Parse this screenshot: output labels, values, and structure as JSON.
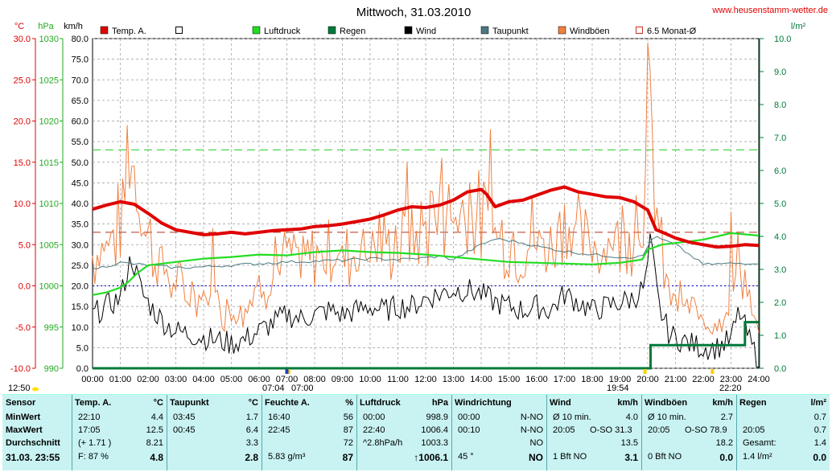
{
  "title": "Mittwoch, 31.03.2010",
  "site": "www.heusenstamm-wetter.de",
  "units": {
    "temp": "°C",
    "press": "hPa",
    "wind": "km/h",
    "rain": "l/m²"
  },
  "legend": [
    {
      "name": "Temp. A.",
      "color": "#e00000",
      "kind": "fill"
    },
    {
      "name": "",
      "color": "#000000",
      "kind": "box"
    },
    {
      "name": "Luftdruck",
      "color": "#22dd22",
      "kind": "fill"
    },
    {
      "name": "Regen",
      "color": "#007a3a",
      "kind": "fill"
    },
    {
      "name": "Wind",
      "color": "#000000",
      "kind": "fill"
    },
    {
      "name": "Taupunkt",
      "color": "#4a7a80",
      "kind": "fill"
    },
    {
      "name": "Windböen",
      "color": "#f08040",
      "kind": "fill"
    },
    {
      "name": "6.5 Monat-Ø",
      "color": "#d03020",
      "kind": "box"
    }
  ],
  "chart_data": {
    "type": "line",
    "x_range": [
      "00:00",
      "24:00"
    ],
    "x_ticks": [
      "00:00",
      "01:00",
      "02:00",
      "03:00",
      "04:00",
      "05:00",
      "06:00",
      "07:00",
      "08:00",
      "09:00",
      "10:00",
      "11:00",
      "12:00",
      "13:00",
      "14:00",
      "15:00",
      "16:00",
      "17:00",
      "18:00",
      "19:00",
      "20:00",
      "21:00",
      "22:00",
      "23:00",
      "24:00"
    ],
    "axes": {
      "temp_ticks": [
        "30.0",
        "25.0",
        "20.0",
        "15.0",
        "10.0",
        "5.0",
        "0.0",
        "-5.0",
        "-10.0"
      ],
      "press_ticks": [
        "1030",
        "1025",
        "1020",
        "1015",
        "1010",
        "1005",
        "1000",
        "995",
        "990"
      ],
      "wind_ticks": [
        "80.0",
        "75.0",
        "70.0",
        "65.0",
        "60.0",
        "55.0",
        "50.0",
        "45.0",
        "40.0",
        "35.0",
        "30.0",
        "25.0",
        "20.0",
        "15.0",
        "10.0",
        "5.0",
        "0.0"
      ],
      "rain_ticks": [
        "10.0",
        "9.0",
        "8.0",
        "7.0",
        "6.0",
        "5.0",
        "4.0",
        "3.0",
        "2.0",
        "1.0",
        "0.0"
      ],
      "temp_range": [
        -10,
        30
      ],
      "press_range": [
        990,
        1030
      ],
      "wind_range": [
        0,
        80
      ],
      "rain_range": [
        0,
        10
      ]
    },
    "reference_lines": {
      "temp_monthly_avg": 6.5,
      "press_ref": 1016.5,
      "temp_zero": 0
    },
    "sun_events": [
      {
        "label": "07:04",
        "hour": 7.07
      },
      {
        "label": "07:00",
        "hour": 7.0
      },
      {
        "label": "19:54",
        "hour": 19.9
      },
      {
        "label": "22:20",
        "hour": 22.33
      }
    ],
    "left_time": "12:50",
    "series": {
      "temp": [
        [
          0,
          9.3
        ],
        [
          0.5,
          9.8
        ],
        [
          1,
          10.2
        ],
        [
          1.5,
          9.9
        ],
        [
          2,
          8.8
        ],
        [
          2.5,
          7.6
        ],
        [
          3,
          6.8
        ],
        [
          3.5,
          6.5
        ],
        [
          4,
          6.2
        ],
        [
          4.5,
          6.3
        ],
        [
          5,
          6.5
        ],
        [
          5.5,
          6.3
        ],
        [
          6,
          6.5
        ],
        [
          6.5,
          6.7
        ],
        [
          7,
          6.8
        ],
        [
          7.5,
          6.9
        ],
        [
          8,
          7.2
        ],
        [
          8.5,
          7.3
        ],
        [
          9,
          7.5
        ],
        [
          9.5,
          7.8
        ],
        [
          10,
          8.1
        ],
        [
          10.5,
          8.6
        ],
        [
          11,
          9.2
        ],
        [
          11.5,
          9.6
        ],
        [
          12,
          9.5
        ],
        [
          12.5,
          9.8
        ],
        [
          13,
          10.4
        ],
        [
          13.5,
          11.4
        ],
        [
          14,
          11.7
        ],
        [
          14.2,
          11.1
        ],
        [
          14.5,
          9.6
        ],
        [
          15,
          10.2
        ],
        [
          15.5,
          10.4
        ],
        [
          16,
          11.0
        ],
        [
          16.5,
          11.6
        ],
        [
          17,
          12.0
        ],
        [
          17.5,
          11.4
        ],
        [
          18,
          11.1
        ],
        [
          18.5,
          10.8
        ],
        [
          19,
          10.7
        ],
        [
          19.5,
          10.2
        ],
        [
          20,
          9.2
        ],
        [
          20.3,
          6.8
        ],
        [
          20.6,
          6.4
        ],
        [
          21,
          5.8
        ],
        [
          21.5,
          5.3
        ],
        [
          22,
          5.0
        ],
        [
          22.5,
          4.7
        ],
        [
          23,
          4.8
        ],
        [
          23.5,
          5.0
        ],
        [
          24,
          4.9
        ]
      ],
      "dewpoint": [
        [
          0,
          2.0
        ],
        [
          1,
          2.8
        ],
        [
          2,
          2.5
        ],
        [
          3,
          2.2
        ],
        [
          4,
          2.3
        ],
        [
          5,
          2.5
        ],
        [
          6,
          2.7
        ],
        [
          7,
          2.9
        ],
        [
          8,
          3.0
        ],
        [
          9,
          3.1
        ],
        [
          10,
          3.3
        ],
        [
          11,
          3.2
        ],
        [
          12,
          3.4
        ],
        [
          12.5,
          3.6
        ],
        [
          13,
          3.2
        ],
        [
          14,
          5.0
        ],
        [
          14.5,
          5.7
        ],
        [
          15,
          5.5
        ],
        [
          15.5,
          5.2
        ],
        [
          16,
          4.8
        ],
        [
          17,
          4.2
        ],
        [
          18,
          3.8
        ],
        [
          19,
          3.5
        ],
        [
          19.8,
          3.5
        ],
        [
          20.2,
          6.0
        ],
        [
          21,
          5.0
        ],
        [
          22,
          2.6
        ],
        [
          23,
          2.7
        ],
        [
          24,
          2.8
        ]
      ],
      "pressure": [
        [
          0,
          998.9
        ],
        [
          0.5,
          999.2
        ],
        [
          1,
          999.8
        ],
        [
          1.3,
          1000.5
        ],
        [
          1.6,
          1001.5
        ],
        [
          2,
          1002.5
        ],
        [
          3,
          1002.9
        ],
        [
          4,
          1003.3
        ],
        [
          5,
          1003.5
        ],
        [
          6,
          1003.8
        ],
        [
          7,
          1003.7
        ],
        [
          8,
          1004.1
        ],
        [
          9,
          1004.3
        ],
        [
          10,
          1004.1
        ],
        [
          11,
          1004.0
        ],
        [
          12,
          1003.8
        ],
        [
          13,
          1003.5
        ],
        [
          14,
          1003.2
        ],
        [
          15,
          1002.9
        ],
        [
          16,
          1002.8
        ],
        [
          17,
          1002.7
        ],
        [
          18,
          1002.6
        ],
        [
          19,
          1002.8
        ],
        [
          19.8,
          1003.2
        ],
        [
          20,
          1004.4
        ],
        [
          20.5,
          1005.0
        ],
        [
          21,
          1005.2
        ],
        [
          22,
          1005.6
        ],
        [
          22.5,
          1006.0
        ],
        [
          23,
          1006.4
        ],
        [
          24,
          1006.1
        ]
      ],
      "rain": [
        [
          0,
          0
        ],
        [
          20.1,
          0
        ],
        [
          20.1,
          0.7
        ],
        [
          23.5,
          0.7
        ],
        [
          23.5,
          1.4
        ],
        [
          24,
          1.4
        ]
      ],
      "wind_seed": 7,
      "wind_profile": [
        [
          0,
          13
        ],
        [
          0.5,
          15
        ],
        [
          1,
          17
        ],
        [
          1.4,
          27
        ],
        [
          1.8,
          18
        ],
        [
          2.2,
          14
        ],
        [
          2.6,
          11
        ],
        [
          3,
          9
        ],
        [
          4,
          7.5
        ],
        [
          5,
          6
        ],
        [
          5.5,
          7
        ],
        [
          6,
          9
        ],
        [
          6.5,
          11
        ],
        [
          7,
          13
        ],
        [
          7.5,
          12
        ],
        [
          8,
          13
        ],
        [
          8.5,
          14
        ],
        [
          9,
          13
        ],
        [
          9.5,
          14
        ],
        [
          10,
          15
        ],
        [
          10.5,
          14
        ],
        [
          11,
          15
        ],
        [
          11.5,
          15
        ],
        [
          12,
          17
        ],
        [
          12.5,
          18
        ],
        [
          13,
          19
        ],
        [
          13.5,
          19
        ],
        [
          14,
          18
        ],
        [
          14.5,
          16
        ],
        [
          15,
          15
        ],
        [
          15.5,
          14
        ],
        [
          16,
          15
        ],
        [
          16.5,
          14
        ],
        [
          17,
          18
        ],
        [
          17.5,
          16
        ],
        [
          18,
          14
        ],
        [
          18.5,
          15
        ],
        [
          19,
          16
        ],
        [
          19.5,
          17
        ],
        [
          19.9,
          20
        ],
        [
          20.1,
          31
        ],
        [
          20.4,
          15
        ],
        [
          20.8,
          8
        ],
        [
          21.5,
          6
        ],
        [
          22,
          5
        ],
        [
          22.5,
          5
        ],
        [
          23,
          7
        ],
        [
          23.3,
          14
        ],
        [
          23.7,
          6
        ],
        [
          24,
          2
        ]
      ],
      "gust_peaks": [
        [
          1.25,
          59
        ],
        [
          4.3,
          34
        ],
        [
          6.6,
          32
        ],
        [
          10.3,
          38
        ],
        [
          11.3,
          50
        ],
        [
          12.2,
          43
        ],
        [
          12.6,
          51
        ],
        [
          13.6,
          45
        ],
        [
          14.3,
          58
        ],
        [
          15.8,
          42
        ],
        [
          16.8,
          38
        ],
        [
          19.6,
          42
        ],
        [
          20.0,
          79
        ],
        [
          23.0,
          38
        ]
      ]
    }
  },
  "panel": {
    "sensor": {
      "header": "Sensor",
      "rows": [
        "MinWert",
        "MaxWert",
        "Durchschnitt"
      ],
      "footer": "31.03.  23:55"
    },
    "temp": {
      "header": "Temp. A.",
      "unit": "°C",
      "rows": [
        [
          "22:10",
          "4.4"
        ],
        [
          "17:05",
          "12.5"
        ],
        [
          "(+ 1.71 )",
          "8.21"
        ]
      ],
      "footer": [
        "F: 87 %",
        "4.8"
      ]
    },
    "dew": {
      "header": "Taupunkt",
      "unit": "°C",
      "rows": [
        [
          "03:45",
          "1.7"
        ],
        [
          "00:45",
          "6.4"
        ],
        [
          "",
          "3.3"
        ]
      ],
      "footer": [
        "",
        "2.8"
      ]
    },
    "hum": {
      "header": "Feuchte A.",
      "unit": "%",
      "rows": [
        [
          "16:40",
          "56"
        ],
        [
          "22:45",
          "87"
        ],
        [
          "",
          "72"
        ]
      ],
      "footer": [
        "5.83 g/m³",
        "87"
      ]
    },
    "press": {
      "header": "Luftdruck",
      "unit": "hPa",
      "rows": [
        [
          "00:00",
          "998.9"
        ],
        [
          "22:40",
          "1006.4"
        ],
        [
          "^2.8hPa/h",
          "1003.3"
        ]
      ],
      "footer": [
        "",
        "↑1006.1"
      ]
    },
    "wdir": {
      "header": "Windrichtung",
      "unit": "",
      "rows": [
        [
          "00:00",
          "N-NO"
        ],
        [
          "00:10",
          "N-NO"
        ],
        [
          "",
          "NO"
        ]
      ],
      "footer": [
        "45 °",
        "NO"
      ]
    },
    "wind": {
      "header": "Wind",
      "unit": "km/h",
      "rows": [
        [
          "Ø 10 min.",
          "",
          "4.0"
        ],
        [
          "20:05",
          "O-SO 31.3",
          ""
        ],
        [
          "",
          "",
          "13.5"
        ]
      ],
      "footer": [
        "1 Bft NO",
        "3.1"
      ]
    },
    "gust": {
      "header": "Windböen",
      "unit": "km/h",
      "rows": [
        [
          "Ø 10 min.",
          "",
          "2.7"
        ],
        [
          "20:05",
          "O-SO 78.9",
          ""
        ],
        [
          "",
          "",
          "18.2"
        ]
      ],
      "footer": [
        "0 Bft NO",
        "0.0"
      ]
    },
    "rain": {
      "header": "Regen",
      "unit": "l/m²",
      "rows": [
        [
          "",
          "0.7"
        ],
        [
          "20:05",
          "0.7"
        ],
        [
          "Gesamt:",
          "1.4"
        ]
      ],
      "footer": [
        "1.4 l/m²",
        "0.0"
      ]
    }
  }
}
